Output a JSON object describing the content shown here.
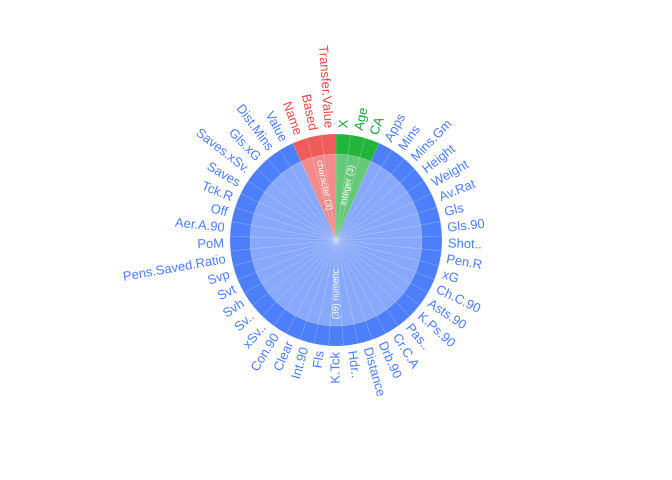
{
  "chart_data": {
    "type": "pie",
    "description_free": true,
    "groups": [
      {
        "name": "integer (3)",
        "count": 3,
        "color_inner": "#66c97a",
        "color_outer": "#22b53c",
        "label_color": "#1aa336",
        "columns": [
          "X",
          "Age",
          "CA"
        ]
      },
      {
        "name": "(39) numeric",
        "count": 39,
        "color_inner": "#88a8fb",
        "color_outer": "#4d7ffa",
        "label_color": "#4d7ffa",
        "columns": [
          "Apps",
          "Mins",
          "Mins.Gm",
          "Height",
          "Weight",
          "Av.Rat",
          "Gls",
          "Gls.90",
          "Shot..",
          "Pen.R",
          "xG",
          "Ch.C.90",
          "Asts.90",
          "K.Ps.90",
          "Pas..",
          "Cr.C.A",
          "Drb.90",
          "Distance",
          "Hdr..",
          "K.Tck",
          "Fls",
          "Int.90",
          "Clear",
          "Con.90",
          "xSv..",
          "Sv..",
          "Svh",
          "Svt",
          "Svp",
          "Pens.Saved.Ratio",
          "PoM",
          "Aer.A.90",
          "Off",
          "Tck.R",
          "Saves",
          "Saves.xSv.",
          "Gls.xG",
          "Dist.Mins",
          "Value"
        ]
      },
      {
        "name": "character (3)",
        "count": 3,
        "color_inner": "#f28c8c",
        "color_outer": "#ef5a5a",
        "label_color": "#e84a4a",
        "columns": [
          "Name",
          "Based",
          "Transfer.Value"
        ]
      }
    ]
  }
}
